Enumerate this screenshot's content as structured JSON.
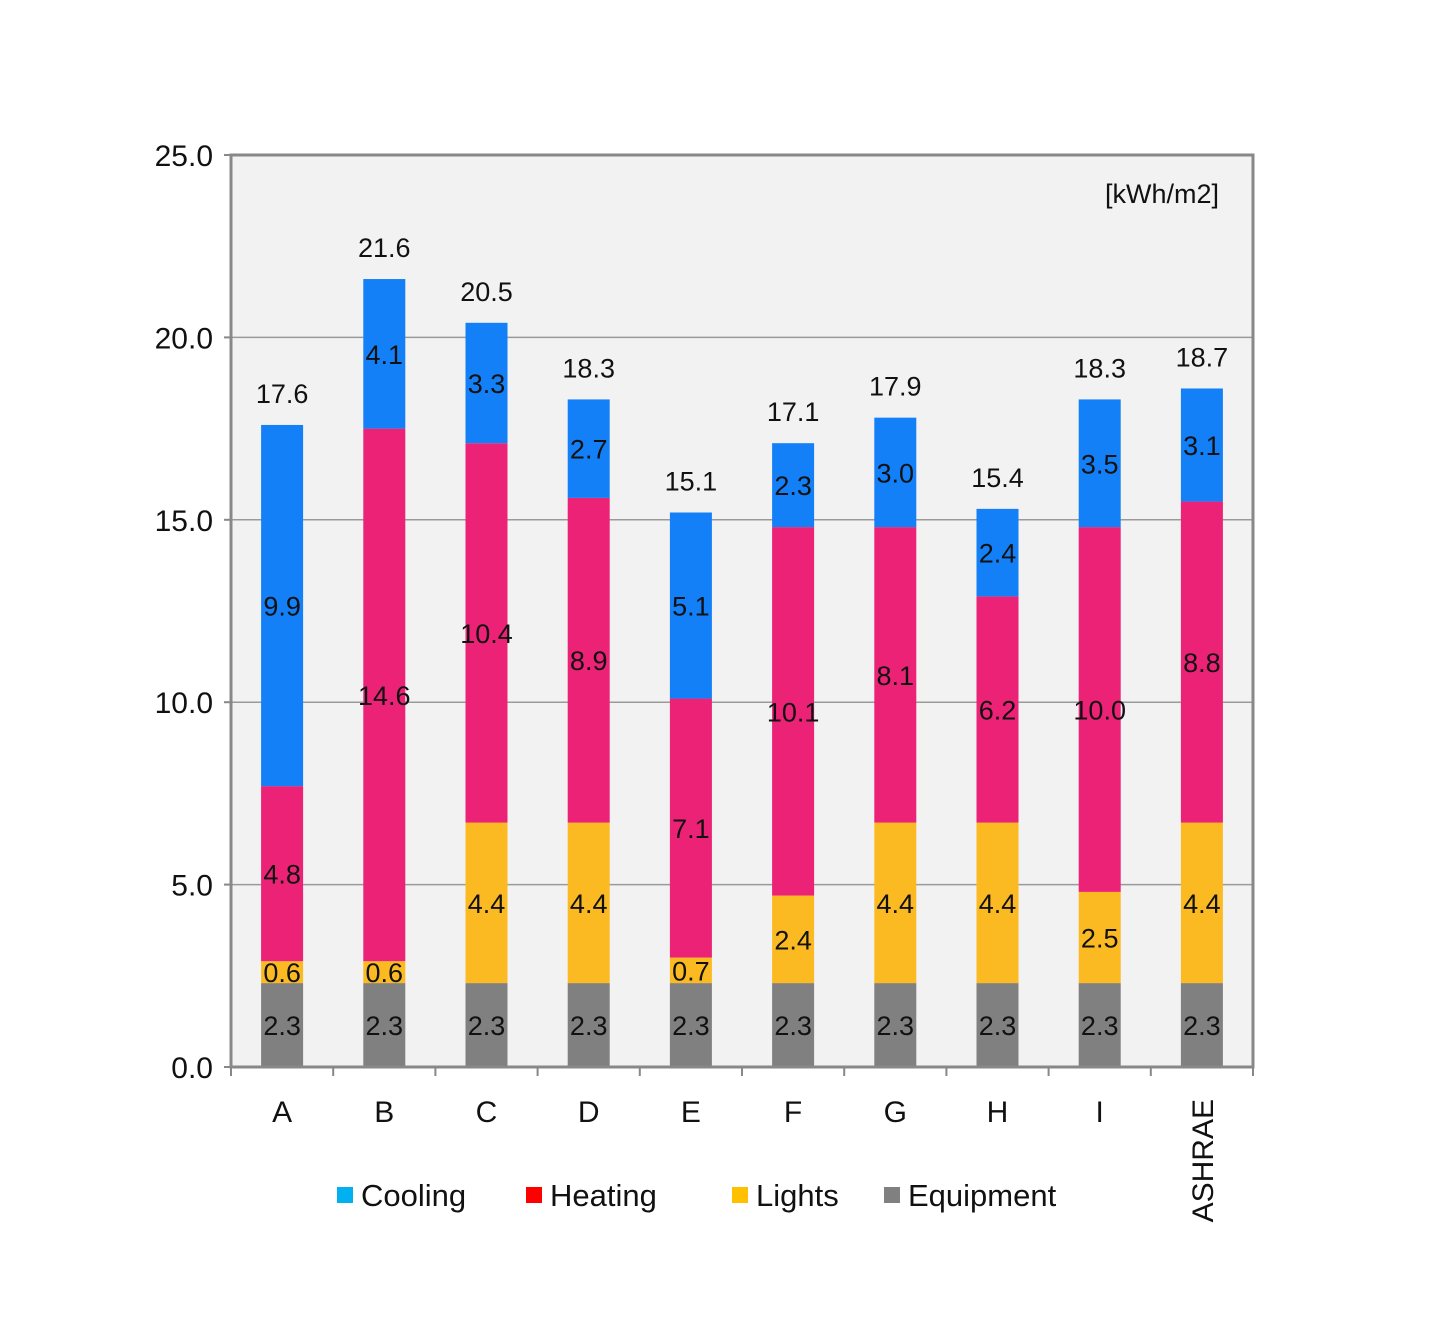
{
  "chart_data": {
    "type": "bar",
    "stacked": true,
    "unit_label": "[kWh/m2]",
    "categories": [
      "A",
      "B",
      "C",
      "D",
      "E",
      "F",
      "G",
      "H",
      "I",
      "ASHRAE"
    ],
    "totals": [
      17.6,
      21.6,
      20.5,
      18.3,
      15.1,
      17.1,
      17.9,
      15.4,
      18.3,
      18.7
    ],
    "series": [
      {
        "name": "Equipment",
        "values": [
          2.3,
          2.3,
          2.3,
          2.3,
          2.3,
          2.3,
          2.3,
          2.3,
          2.3,
          2.3
        ],
        "labels": [
          "2.3",
          "2.3",
          "2.3",
          "2.3",
          "2.3",
          "2.3",
          "2.3",
          "2.3",
          "2.3",
          "2.3"
        ],
        "color": "#808080"
      },
      {
        "name": "Lights",
        "values": [
          0.6,
          0.6,
          4.4,
          4.4,
          0.7,
          2.4,
          4.4,
          4.4,
          2.5,
          4.4
        ],
        "labels": [
          "0.6",
          "0.6",
          "4.4",
          "4.4",
          "0.7",
          "2.4",
          "4.4",
          "4.4",
          "2.5",
          "4.4"
        ],
        "color": "#FCBA22"
      },
      {
        "name": "Heating",
        "values": [
          4.8,
          14.6,
          10.4,
          8.9,
          7.1,
          10.1,
          8.1,
          6.2,
          10.0,
          8.8
        ],
        "labels": [
          "4.8",
          "14.6",
          "10.4",
          "8.9",
          "7.1",
          "10.1",
          "8.1",
          "6.2",
          "10.0",
          "8.8"
        ],
        "color": "#EC2277"
      },
      {
        "name": "Cooling",
        "values": [
          9.9,
          4.1,
          3.3,
          2.7,
          5.1,
          2.3,
          3.0,
          2.4,
          3.5,
          3.1
        ],
        "labels": [
          "9.9",
          "4.1",
          "3.3",
          "2.7",
          "5.1",
          "2.3",
          "3.0",
          "2.4",
          "3.5",
          "3.1"
        ],
        "color": "#1380F8"
      }
    ],
    "legend": [
      {
        "name": "Cooling",
        "color": "#00B0F0"
      },
      {
        "name": "Heating",
        "color": "#FF0000"
      },
      {
        "name": "Lights",
        "color": "#FFC000"
      },
      {
        "name": "Equipment",
        "color": "#808080"
      }
    ],
    "ylim": [
      0,
      25
    ],
    "yticks": [
      "0.0",
      "5.0",
      "10.0",
      "15.0",
      "20.0",
      "25.0"
    ],
    "grid": true,
    "legend_position": "bottom",
    "xlabel": "",
    "ylabel": ""
  }
}
